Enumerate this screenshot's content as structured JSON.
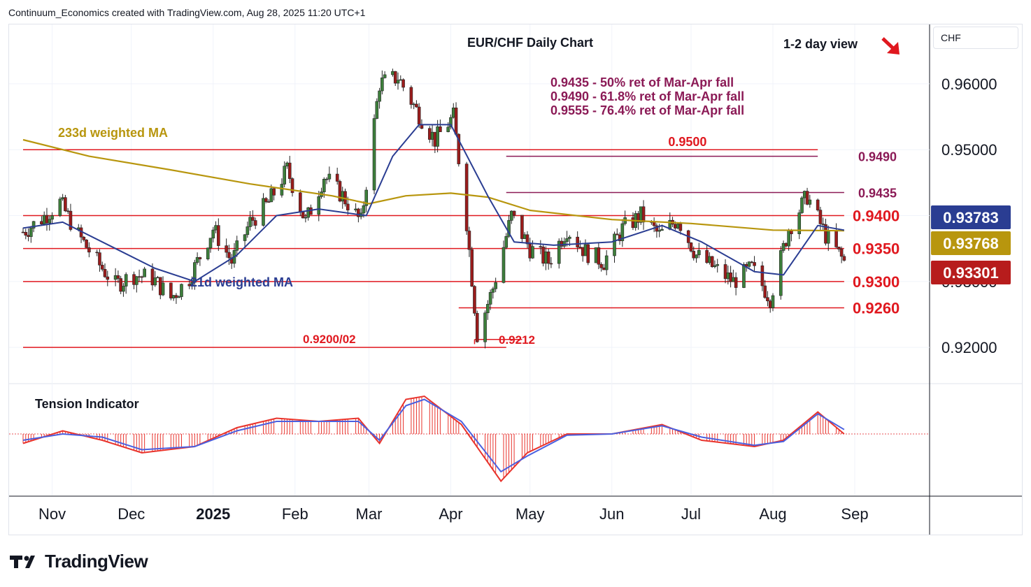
{
  "header": {
    "text": "Continuum_Economics created with TradingView.com, Aug 28, 2025 11:20 UTC+1"
  },
  "brand": {
    "logo_text": "TradingView"
  },
  "currency": "CHF",
  "colors": {
    "support_resistance": "#e0181f",
    "fib_line": "#8b1a56",
    "ma_21": "#2a3d92",
    "ma_233": "#b8960e",
    "candle_up": "#3d7f3b",
    "candle_down": "#9b1c1c",
    "tension_fast": "#e8332c",
    "tension_slow": "#4a60e0",
    "price_label_current": "#b71c1c",
    "price_label_ma21": "#2a3d92",
    "price_label_ma233": "#b8960e"
  },
  "chart_data": {
    "type": "candlestick",
    "title": "EUR/CHF Daily Chart",
    "view_label": "1-2 day view",
    "view_direction": "down",
    "x_labels": [
      "Nov",
      "Dec",
      "2025",
      "Feb",
      "Mar",
      "Apr",
      "May",
      "Jun",
      "Jul",
      "Aug",
      "Sep"
    ],
    "y_ticks": [
      "0.96000",
      "0.95000",
      "0.93000",
      "0.92000"
    ],
    "ylim": [
      0.9145,
      0.969
    ],
    "date_range": [
      "2024-10-21",
      "2025-08-28"
    ],
    "fib_notes": [
      "0.9435 - 50% ret of Mar-Apr fall",
      "0.9490 - 61.8% ret of Mar-Apr fall",
      "0.9555 - 76.4% ret of Mar-Apr fall"
    ],
    "levels": [
      {
        "label": "0.9500",
        "value": 0.95,
        "kind": "resistance",
        "from": "2024-10-21",
        "to": "2025-08-18",
        "label_at": "2025-06-25"
      },
      {
        "label": "0.9490",
        "value": 0.949,
        "kind": "fib",
        "from": "2025-04-22",
        "to": "2025-08-18",
        "label_at": "2025-09-02"
      },
      {
        "label": "0.9435",
        "value": 0.9435,
        "kind": "fib",
        "from": "2025-04-22",
        "to": "2025-08-28",
        "label_at": "2025-09-02"
      },
      {
        "label": "0.9400",
        "value": 0.94,
        "kind": "resistance",
        "from": "2024-10-21",
        "to": "2025-08-28",
        "label_at": "2025-09-02"
      },
      {
        "label": "0.9350",
        "value": 0.935,
        "kind": "resistance",
        "from": "2024-10-21",
        "to": "2025-08-28",
        "label_at": "2025-09-02"
      },
      {
        "label": "0.9300",
        "value": 0.93,
        "kind": "support",
        "from": "2024-10-21",
        "to": "2025-08-28",
        "label_at": "2025-09-02"
      },
      {
        "label": "0.9260",
        "value": 0.926,
        "kind": "support",
        "from": "2025-04-04",
        "to": "2025-08-28",
        "label_at": "2025-09-02"
      },
      {
        "label": "0.9212",
        "value": 0.9212,
        "kind": "support",
        "from": "2025-04-10",
        "to": "2025-04-28",
        "label_at": "2025-05-04"
      },
      {
        "label": "0.9200/02",
        "value": 0.92,
        "kind": "support",
        "from": "2024-10-21",
        "to": "2025-04-22",
        "label_at": "2025-02-09"
      }
    ],
    "price_labels": {
      "ma_21": "0.93783",
      "ma_233": "0.93768",
      "last_price": "0.93301"
    },
    "ma_233": {
      "label": "233d weighted MA",
      "points": [
        [
          "2024-10-21",
          0.9515
        ],
        [
          "2024-11-15",
          0.949
        ],
        [
          "2024-12-15",
          0.947
        ],
        [
          "2025-01-15",
          0.9448
        ],
        [
          "2025-02-15",
          0.943
        ],
        [
          "2025-03-01",
          0.9418
        ],
        [
          "2025-03-15",
          0.943
        ],
        [
          "2025-04-01",
          0.9434
        ],
        [
          "2025-04-15",
          0.9428
        ],
        [
          "2025-05-01",
          0.9408
        ],
        [
          "2025-06-01",
          0.9394
        ],
        [
          "2025-07-01",
          0.9388
        ],
        [
          "2025-08-01",
          0.9378
        ],
        [
          "2025-08-28",
          0.9377
        ]
      ]
    },
    "ma_21": {
      "label": "21d weighted MA",
      "points": [
        [
          "2024-10-21",
          0.9381
        ],
        [
          "2024-11-05",
          0.939
        ],
        [
          "2024-11-25",
          0.935
        ],
        [
          "2024-12-10",
          0.932
        ],
        [
          "2024-12-25",
          0.93
        ],
        [
          "2025-01-10",
          0.934
        ],
        [
          "2025-01-25",
          0.94
        ],
        [
          "2025-02-10",
          0.941
        ],
        [
          "2025-02-28",
          0.94
        ],
        [
          "2025-03-10",
          0.949
        ],
        [
          "2025-03-20",
          0.9538
        ],
        [
          "2025-04-01",
          0.9538
        ],
        [
          "2025-04-15",
          0.943
        ],
        [
          "2025-04-25",
          0.936
        ],
        [
          "2025-05-10",
          0.9355
        ],
        [
          "2025-06-01",
          0.936
        ],
        [
          "2025-06-20",
          0.9385
        ],
        [
          "2025-07-05",
          0.936
        ],
        [
          "2025-07-25",
          0.9315
        ],
        [
          "2025-08-05",
          0.931
        ],
        [
          "2025-08-18",
          0.9385
        ],
        [
          "2025-08-28",
          0.9378
        ]
      ]
    },
    "candles_daily_closes": [
      [
        "2024-10-21",
        0.9375
      ],
      [
        "2024-10-28",
        0.9395
      ],
      [
        "2024-11-04",
        0.942
      ],
      [
        "2024-11-11",
        0.937
      ],
      [
        "2024-11-18",
        0.933
      ],
      [
        "2024-11-25",
        0.9295
      ],
      [
        "2024-12-02",
        0.931
      ],
      [
        "2024-12-09",
        0.9305
      ],
      [
        "2024-12-16",
        0.9275
      ],
      [
        "2024-12-23",
        0.9305
      ],
      [
        "2025-01-01",
        0.938
      ],
      [
        "2025-01-08",
        0.933
      ],
      [
        "2025-01-15",
        0.939
      ],
      [
        "2025-01-22",
        0.942
      ],
      [
        "2025-01-29",
        0.947
      ],
      [
        "2025-02-05",
        0.939
      ],
      [
        "2025-02-12",
        0.946
      ],
      [
        "2025-02-19",
        0.943
      ],
      [
        "2025-02-26",
        0.939
      ],
      [
        "2025-03-05",
        0.96
      ],
      [
        "2025-03-12",
        0.961
      ],
      [
        "2025-03-19",
        0.956
      ],
      [
        "2025-03-26",
        0.9515
      ],
      [
        "2025-04-02",
        0.955
      ],
      [
        "2025-04-07",
        0.939
      ],
      [
        "2025-04-11",
        0.922
      ],
      [
        "2025-04-17",
        0.929
      ],
      [
        "2025-04-24",
        0.94
      ],
      [
        "2025-05-01",
        0.935
      ],
      [
        "2025-05-08",
        0.933
      ],
      [
        "2025-05-15",
        0.938
      ],
      [
        "2025-05-22",
        0.9345
      ],
      [
        "2025-05-29",
        0.933
      ],
      [
        "2025-06-05",
        0.938
      ],
      [
        "2025-06-12",
        0.94
      ],
      [
        "2025-06-19",
        0.937
      ],
      [
        "2025-06-26",
        0.9395
      ],
      [
        "2025-07-03",
        0.934
      ],
      [
        "2025-07-10",
        0.932
      ],
      [
        "2025-07-17",
        0.93
      ],
      [
        "2025-07-24",
        0.932
      ],
      [
        "2025-07-31",
        0.9275
      ],
      [
        "2025-08-07",
        0.938
      ],
      [
        "2025-08-14",
        0.943
      ],
      [
        "2025-08-21",
        0.937
      ],
      [
        "2025-08-28",
        0.933
      ]
    ],
    "tension_indicator": {
      "label": "Tension Indicator",
      "fast": [
        [
          "2024-10-21",
          -0.15
        ],
        [
          "2024-11-05",
          0.05
        ],
        [
          "2024-11-20",
          -0.1
        ],
        [
          "2024-12-05",
          -0.3
        ],
        [
          "2024-12-25",
          -0.2
        ],
        [
          "2025-01-10",
          0.1
        ],
        [
          "2025-01-25",
          0.25
        ],
        [
          "2025-02-10",
          0.2
        ],
        [
          "2025-02-25",
          0.25
        ],
        [
          "2025-03-05",
          -0.15
        ],
        [
          "2025-03-15",
          0.55
        ],
        [
          "2025-03-22",
          0.6
        ],
        [
          "2025-04-05",
          0.15
        ],
        [
          "2025-04-20",
          -0.75
        ],
        [
          "2025-04-30",
          -0.3
        ],
        [
          "2025-05-15",
          0.0
        ],
        [
          "2025-06-01",
          0.0
        ],
        [
          "2025-06-20",
          0.15
        ],
        [
          "2025-07-05",
          -0.1
        ],
        [
          "2025-07-25",
          -0.2
        ],
        [
          "2025-08-05",
          -0.1
        ],
        [
          "2025-08-18",
          0.35
        ],
        [
          "2025-08-28",
          0.0
        ]
      ],
      "slow": [
        [
          "2024-10-21",
          -0.1
        ],
        [
          "2024-11-05",
          0.0
        ],
        [
          "2024-11-20",
          -0.05
        ],
        [
          "2024-12-05",
          -0.25
        ],
        [
          "2024-12-25",
          -0.2
        ],
        [
          "2025-01-10",
          0.05
        ],
        [
          "2025-01-25",
          0.2
        ],
        [
          "2025-02-10",
          0.2
        ],
        [
          "2025-02-25",
          0.2
        ],
        [
          "2025-03-05",
          -0.1
        ],
        [
          "2025-03-15",
          0.45
        ],
        [
          "2025-03-22",
          0.55
        ],
        [
          "2025-04-05",
          0.2
        ],
        [
          "2025-04-20",
          -0.6
        ],
        [
          "2025-04-30",
          -0.35
        ],
        [
          "2025-05-15",
          -0.02
        ],
        [
          "2025-06-01",
          0.0
        ],
        [
          "2025-06-20",
          0.13
        ],
        [
          "2025-07-05",
          -0.05
        ],
        [
          "2025-07-25",
          -0.18
        ],
        [
          "2025-08-05",
          -0.12
        ],
        [
          "2025-08-18",
          0.32
        ],
        [
          "2025-08-28",
          0.07
        ]
      ]
    }
  }
}
